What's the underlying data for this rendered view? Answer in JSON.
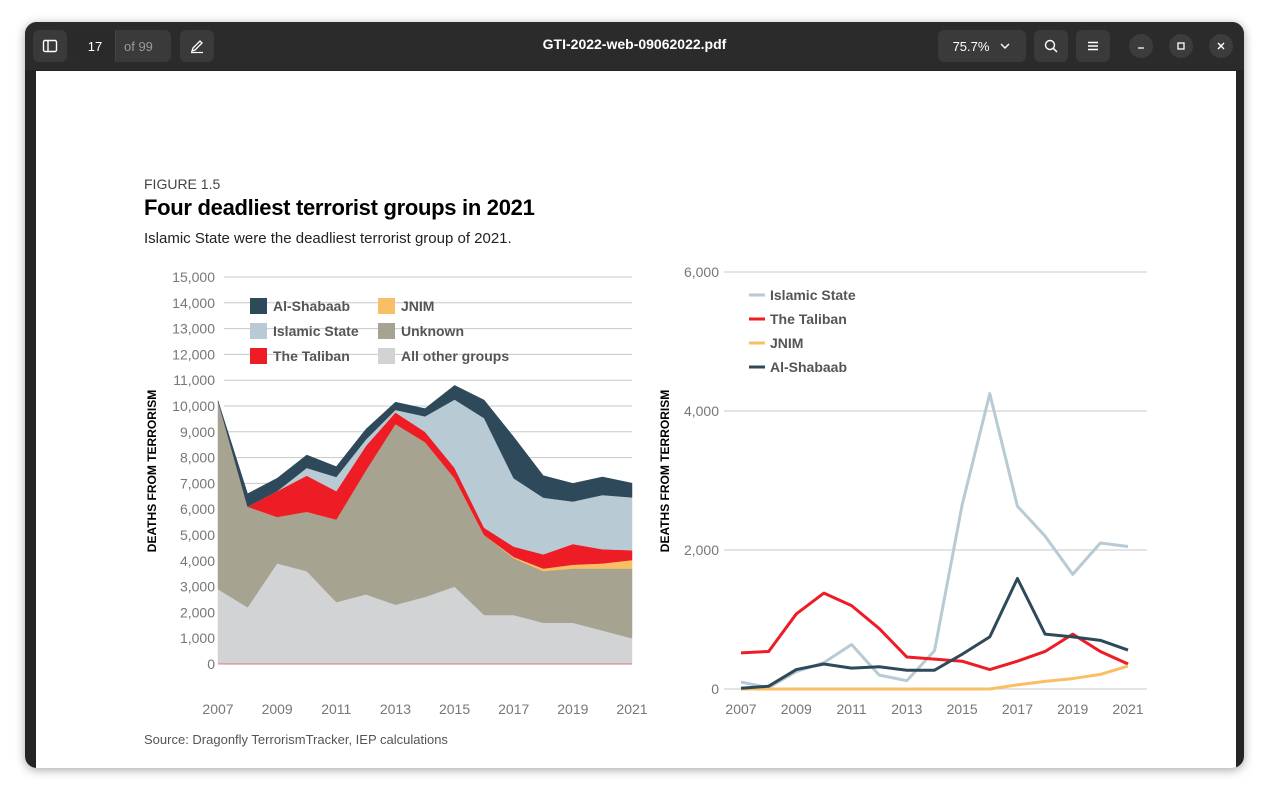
{
  "app": {
    "filename": "GTI-2022-web-09062022.pdf",
    "page_current": "17",
    "page_total": "of 99",
    "zoom": "75.7%"
  },
  "icons": {
    "sidebar": "sidebar-toggle-icon",
    "annotate": "pencil-annotate-icon",
    "search": "search-icon",
    "menu": "hamburger-menu-icon",
    "minimize": "minimize-icon",
    "maximize": "maximize-icon",
    "close": "close-icon",
    "zoom_dropdown": "chevron-down-icon"
  },
  "figure": {
    "label": "FIGURE 1.5",
    "title": "Four deadliest terrorist groups in 2021",
    "subtitle": "Islamic State were the deadliest terrorist group of 2021.",
    "source": "Source: Dragonfly TerrorismTracker, IEP calculations"
  },
  "chart_data": [
    {
      "type": "area",
      "stacked": true,
      "ylabel": "DEATHS FROM TERRORISM",
      "xlabel": "",
      "ylim": [
        0,
        15000
      ],
      "yticks": [
        "0",
        "1,000",
        "2,000",
        "3,000",
        "4,000",
        "5,000",
        "6,000",
        "7,000",
        "8,000",
        "9,000",
        "10,000",
        "11,000",
        "12,000",
        "13,000",
        "14,000",
        "15,000"
      ],
      "xticks": [
        "2007",
        "2009",
        "2011",
        "2013",
        "2015",
        "2017",
        "2019",
        "2021"
      ],
      "x": [
        2007,
        2008,
        2009,
        2010,
        2011,
        2012,
        2013,
        2014,
        2015,
        2016,
        2017,
        2018,
        2019,
        2020,
        2021
      ],
      "legend_position": "top-left",
      "series": [
        {
          "name": "All other groups",
          "color": "#d1d3d4",
          "values": [
            2900,
            2200,
            3900,
            3600,
            2400,
            2700,
            2300,
            2600,
            3000,
            1900,
            1900,
            1600,
            1600,
            1300,
            1000
          ]
        },
        {
          "name": "Unknown",
          "color": "#a6a391",
          "values": [
            7300,
            3900,
            1800,
            2300,
            3200,
            4800,
            7000,
            6000,
            4200,
            3100,
            2200,
            2000,
            2100,
            2400,
            2700
          ]
        },
        {
          "name": "JNIM",
          "color": "#f9bf64",
          "values": [
            0,
            0,
            0,
            0,
            0,
            0,
            0,
            0,
            0,
            0,
            50,
            100,
            150,
            200,
            330
          ]
        },
        {
          "name": "The Taliban",
          "color": "#ee1c25",
          "values": [
            0,
            0,
            1000,
            1400,
            1100,
            950,
            450,
            400,
            400,
            280,
            400,
            550,
            800,
            550,
            380
          ]
        },
        {
          "name": "Islamic State",
          "color": "#b8cad4",
          "values": [
            0,
            0,
            0,
            300,
            550,
            250,
            100,
            600,
            2650,
            4250,
            2650,
            2200,
            1650,
            2100,
            2050
          ]
        },
        {
          "name": "Al-Shabaab",
          "color": "#2e4a5a",
          "values": [
            0,
            500,
            500,
            500,
            400,
            400,
            300,
            300,
            550,
            700,
            1600,
            850,
            700,
            700,
            550
          ]
        }
      ]
    },
    {
      "type": "line",
      "ylabel": "DEATHS FROM TERRORISM",
      "xlabel": "",
      "ylim": [
        0,
        6000
      ],
      "yticks": [
        "0",
        "2,000",
        "4,000",
        "6,000"
      ],
      "xticks": [
        "2007",
        "2009",
        "2011",
        "2013",
        "2015",
        "2017",
        "2019",
        "2021"
      ],
      "x": [
        2007,
        2008,
        2009,
        2010,
        2011,
        2012,
        2013,
        2014,
        2015,
        2016,
        2017,
        2018,
        2019,
        2020,
        2021
      ],
      "legend_position": "top-left",
      "series": [
        {
          "name": "Islamic State",
          "color": "#b8cad4",
          "values": [
            100,
            20,
            250,
            380,
            640,
            200,
            120,
            550,
            2650,
            4250,
            2630,
            2200,
            1650,
            2100,
            2050
          ]
        },
        {
          "name": "The Taliban",
          "color": "#ee1c25",
          "values": [
            520,
            540,
            1080,
            1380,
            1200,
            870,
            460,
            430,
            400,
            280,
            400,
            540,
            790,
            540,
            360
          ]
        },
        {
          "name": "JNIM",
          "color": "#f9bf64",
          "values": [
            0,
            0,
            0,
            0,
            0,
            0,
            0,
            0,
            0,
            0,
            60,
            110,
            150,
            210,
            330
          ]
        },
        {
          "name": "Al-Shabaab",
          "color": "#2e4a5a",
          "values": [
            10,
            40,
            280,
            360,
            300,
            320,
            270,
            270,
            500,
            750,
            1590,
            790,
            750,
            700,
            560
          ]
        }
      ]
    }
  ]
}
